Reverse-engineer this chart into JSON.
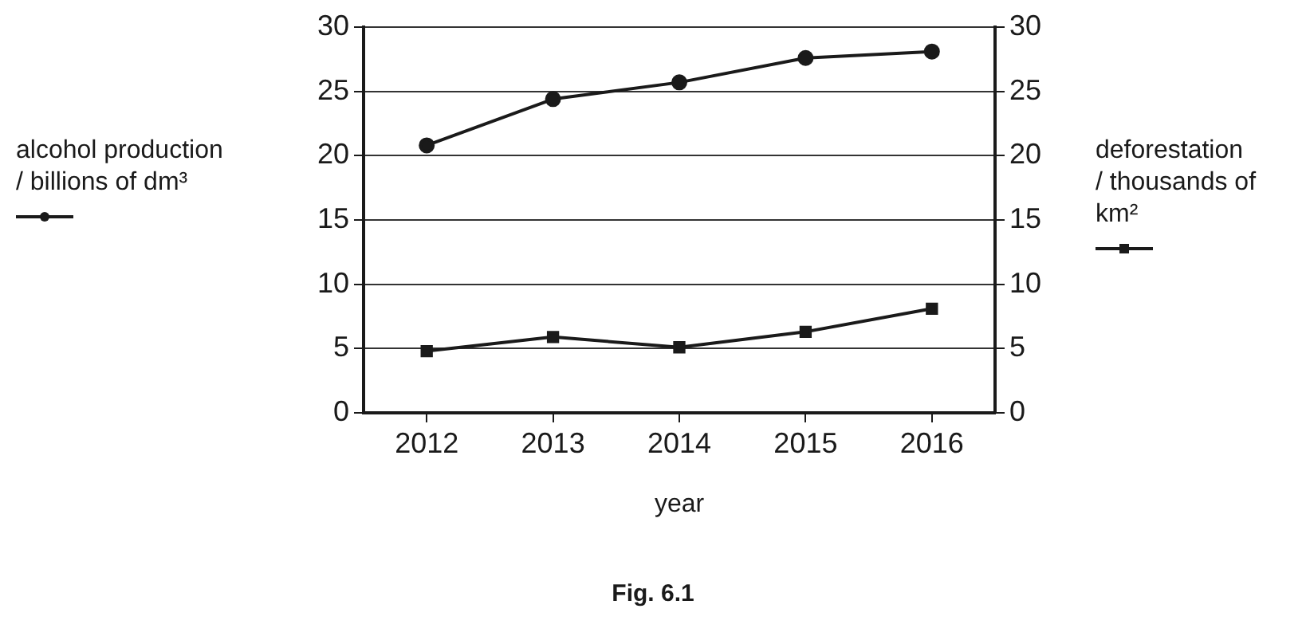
{
  "chart_data": {
    "type": "line",
    "categories": [
      "2012",
      "2013",
      "2014",
      "2015",
      "2016"
    ],
    "series": [
      {
        "color": "#1a1a1a",
        "marker": "circle",
        "values": [
          20.8,
          24.4,
          25.7,
          27.6,
          28.1
        ]
      },
      {
        "color": "#1a1a1a",
        "marker": "square",
        "axis": "y2",
        "values": [
          4.8,
          5.9,
          5.1,
          6.3,
          8.1
        ]
      }
    ],
    "xlabel": "year",
    "ylabel": "alcohol production / billions of dm³",
    "y2label": "deforestation / thousands of km²",
    "ylim": [
      0,
      30
    ],
    "yticks": [
      0,
      5,
      10,
      15,
      20,
      25,
      30
    ],
    "y2lim": [
      0,
      30
    ],
    "y2ticks": [
      0,
      5,
      10,
      15,
      20,
      25,
      30
    ],
    "grid": "y",
    "line_style": "solid",
    "annotations": [
      "Fig. 6.1"
    ]
  }
}
